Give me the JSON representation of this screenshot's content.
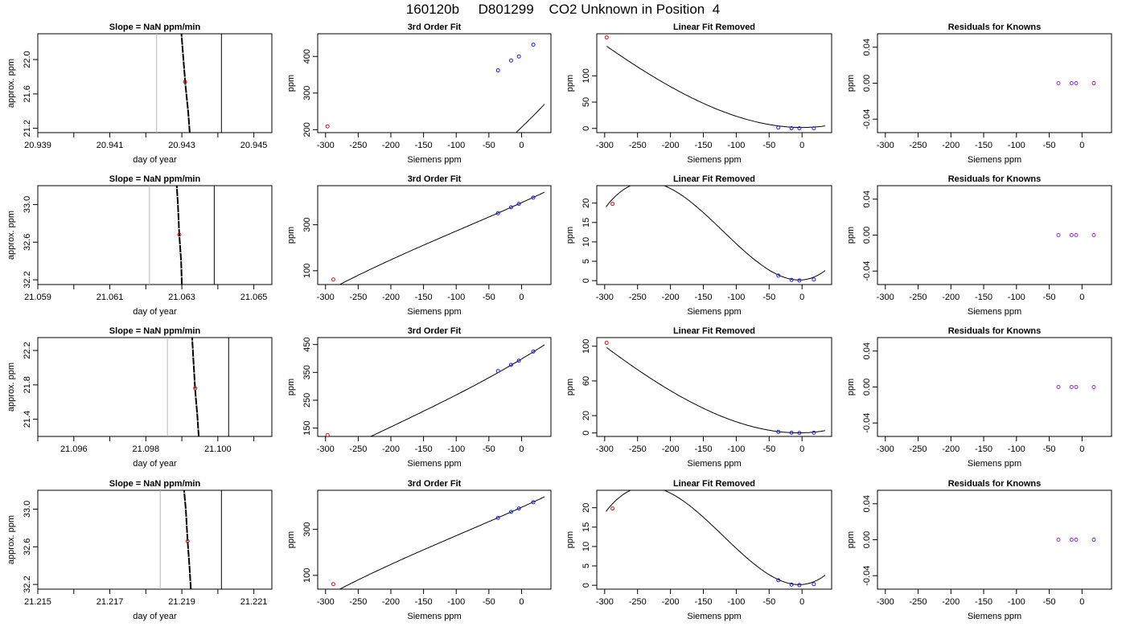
{
  "figure": {
    "title": "160120b     D801299    CO2 Unknown in Position  4"
  },
  "colors": {
    "unknown_point": "#e01010",
    "known_point": "#1a1aff",
    "residual_point": "#8a2be2",
    "curve": "#000000",
    "ref_line_gray": "#b8b8b8",
    "ref_line_black": "#000000"
  },
  "chart_data": [
    {
      "type": "line",
      "row": 1,
      "col": 1,
      "title": "Slope =  NaN  ppm/min",
      "xlabel": "day of year",
      "ylabel": "approx. ppm",
      "xlim": [
        20.939,
        20.9455
      ],
      "ylim": [
        21.15,
        22.3
      ],
      "xticks": [
        20.939,
        20.941,
        20.943,
        20.945
      ],
      "xminor": [
        20.94,
        20.942,
        20.944
      ],
      "yticks": [
        21.2,
        21.6,
        22.0
      ],
      "vlines": [
        {
          "x": 20.9423,
          "color": "gray"
        },
        {
          "x": 20.9441,
          "color": "black"
        }
      ],
      "trace": [
        [
          20.94298,
          22.35
        ],
        [
          20.94303,
          22.08
        ],
        [
          20.9431,
          21.7
        ],
        [
          20.94318,
          21.38
        ],
        [
          20.94322,
          21.15
        ]
      ],
      "marker": [
        20.94309,
        21.74
      ]
    },
    {
      "type": "scatter",
      "row": 1,
      "col": 2,
      "title": "3rd Order Fit",
      "xlabel": "Siemens ppm",
      "ylabel": "ppm",
      "xlim": [
        -312,
        45
      ],
      "ylim": [
        192,
        462
      ],
      "xticks": [
        -300,
        -250,
        -200,
        -150,
        -100,
        -50,
        0
      ],
      "yticks": [
        200,
        300,
        400
      ],
      "fit": {
        "coef": [
          206.5,
          1.7085,
          0.00245,
          2.63e-06
        ],
        "range": [
          -300,
          35
        ]
      },
      "unknown": [
        [
          -297,
          209
        ]
      ],
      "knowns": [
        [
          -36,
          362
        ],
        [
          -16,
          389
        ],
        [
          -4,
          400
        ],
        [
          18,
          432
        ]
      ]
    },
    {
      "type": "scatter",
      "row": 1,
      "col": 3,
      "title": "Linear Fit Removed",
      "xlabel": "Siemens ppm",
      "ylabel": "ppm",
      "xlim": [
        -312,
        45
      ],
      "ylim": [
        -8,
        180
      ],
      "xticks": [
        -300,
        -250,
        -200,
        -150,
        -100,
        -50,
        0
      ],
      "yticks": [
        0,
        50,
        100
      ],
      "fit": {
        "coef": [
          1.8,
          -0.00033,
          0.00233,
          1.95e-06
        ],
        "range": [
          -297,
          35
        ]
      },
      "unknown": [
        [
          -297,
          173
        ]
      ],
      "knowns": [
        [
          -36,
          1.5
        ],
        [
          -16,
          0.4
        ],
        [
          -4,
          0.2
        ],
        [
          18,
          0.3
        ]
      ]
    },
    {
      "type": "scatter",
      "row": 1,
      "col": 4,
      "title": "Residuals for Knowns",
      "xlabel": "Siemens ppm",
      "ylabel": "ppm",
      "xlim": [
        -312,
        45
      ],
      "ylim": [
        -0.055,
        0.055
      ],
      "xticks": [
        -300,
        -250,
        -200,
        -150,
        -100,
        -50,
        0
      ],
      "yticks": [
        -0.04,
        0.0,
        0.04
      ],
      "knowns": [
        [
          -36,
          0
        ],
        [
          -16,
          0
        ],
        [
          -9,
          0
        ],
        [
          18,
          0
        ]
      ]
    },
    {
      "type": "line",
      "row": 2,
      "col": 1,
      "title": "Slope =  NaN  ppm/min",
      "xlabel": "day of year",
      "ylabel": "approx. ppm",
      "xlim": [
        21.059,
        21.0655
      ],
      "ylim": [
        32.15,
        33.2
      ],
      "xticks": [
        21.059,
        21.061,
        21.063,
        21.065
      ],
      "xminor": [
        21.06,
        21.062,
        21.064
      ],
      "yticks": [
        32.2,
        32.6,
        33.0
      ],
      "vlines": [
        {
          "x": 21.0621,
          "color": "gray"
        },
        {
          "x": 21.0639,
          "color": "black"
        }
      ],
      "trace": [
        [
          21.06285,
          33.25
        ],
        [
          21.06289,
          33.0
        ],
        [
          21.06293,
          32.68
        ],
        [
          21.06298,
          32.4
        ],
        [
          21.063,
          32.15
        ]
      ],
      "marker": [
        21.06293,
        32.68
      ]
    },
    {
      "type": "scatter",
      "row": 2,
      "col": 2,
      "title": "3rd Order Fit",
      "xlabel": "Siemens ppm",
      "ylabel": "ppm",
      "xlim": [
        -312,
        45
      ],
      "ylim": [
        40,
        470
      ],
      "xticks": [
        -300,
        -250,
        -200,
        -150,
        -100,
        -50,
        0
      ],
      "yticks": [
        100,
        300
      ],
      "fit": {
        "coef": [
          396,
          1.27,
          0.00058,
          2.2e-06
        ],
        "range": [
          -298,
          35
        ]
      },
      "unknown": [
        [
          -288,
          62
        ]
      ],
      "knowns": [
        [
          -36,
          350
        ],
        [
          -16,
          376
        ],
        [
          -4,
          391
        ],
        [
          18,
          418
        ]
      ]
    },
    {
      "type": "scatter",
      "row": 2,
      "col": 3,
      "title": "Linear Fit Removed",
      "xlabel": "Siemens ppm",
      "ylabel": "ppm",
      "xlim": [
        -312,
        45
      ],
      "ylim": [
        -1,
        24.5
      ],
      "xticks": [
        -300,
        -250,
        -200,
        -150,
        -100,
        -50,
        0
      ],
      "yticks": [
        0,
        5,
        10,
        15,
        20
      ],
      "fit": {
        "coef": [
          0.2,
          0.0122,
          0.00146,
          4.05e-06
        ],
        "range": [
          -298,
          35
        ]
      },
      "unknown": [
        [
          -288,
          19.8
        ]
      ],
      "knowns": [
        [
          -36,
          1.3
        ],
        [
          -16,
          0.2
        ],
        [
          -4,
          0.05
        ],
        [
          18,
          0.3
        ]
      ]
    },
    {
      "type": "scatter",
      "row": 2,
      "col": 4,
      "title": "Residuals for Knowns",
      "xlabel": "Siemens ppm",
      "ylabel": "ppm",
      "xlim": [
        -312,
        45
      ],
      "ylim": [
        -0.055,
        0.055
      ],
      "xticks": [
        -300,
        -250,
        -200,
        -150,
        -100,
        -50,
        0
      ],
      "yticks": [
        -0.04,
        0.0,
        0.04
      ],
      "knowns": [
        [
          -36,
          0
        ],
        [
          -16,
          0
        ],
        [
          -9,
          0
        ],
        [
          18,
          0
        ]
      ]
    },
    {
      "type": "line",
      "row": 3,
      "col": 1,
      "title": "Slope =  NaN  ppm/min",
      "xlabel": "day of year",
      "ylabel": "approx. ppm",
      "xlim": [
        21.095,
        21.1015
      ],
      "ylim": [
        21.2,
        22.35
      ],
      "xticks": [
        21.096,
        21.098,
        21.1
      ],
      "xticklabels": [
        "21.096",
        "21.098",
        "21.100"
      ],
      "xminor": [
        21.095,
        21.097,
        21.099,
        21.101
      ],
      "yticks": [
        21.4,
        21.8,
        22.2
      ],
      "vlines": [
        {
          "x": 21.0986,
          "color": "gray"
        },
        {
          "x": 21.1003,
          "color": "black"
        }
      ],
      "trace": [
        [
          21.09928,
          22.4
        ],
        [
          21.09932,
          22.1
        ],
        [
          21.09937,
          21.75
        ],
        [
          21.09943,
          21.45
        ],
        [
          21.09947,
          21.2
        ]
      ],
      "marker": [
        21.09937,
        21.76
      ]
    },
    {
      "type": "scatter",
      "row": 3,
      "col": 2,
      "title": "3rd Order Fit",
      "xlabel": "Siemens ppm",
      "ylabel": "ppm",
      "xlim": [
        -312,
        45
      ],
      "ylim": [
        120,
        475
      ],
      "xticks": [
        -300,
        -250,
        -200,
        -150,
        -100,
        -50,
        0
      ],
      "yticks": [
        150,
        250,
        350,
        450
      ],
      "fit": {
        "coef": [
          398,
          1.4,
          0.00131,
          2.03e-06
        ],
        "range": [
          -297,
          35
        ]
      },
      "unknown": [
        [
          -297,
          125
        ]
      ],
      "knowns": [
        [
          -36,
          355
        ],
        [
          -16,
          377
        ],
        [
          -4,
          392
        ],
        [
          18,
          425
        ]
      ]
    },
    {
      "type": "scatter",
      "row": 3,
      "col": 3,
      "title": "Linear Fit Removed",
      "xlabel": "Siemens ppm",
      "ylabel": "ppm",
      "xlim": [
        -312,
        45
      ],
      "ylim": [
        -4,
        110
      ],
      "xticks": [
        -300,
        -250,
        -200,
        -150,
        -100,
        -50,
        0
      ],
      "yticks": [
        0,
        20,
        60,
        100
      ],
      "fit": {
        "coef": [
          0.2,
          0.015,
          0.00155,
          1.3e-06
        ],
        "range": [
          -297,
          35
        ]
      },
      "unknown": [
        [
          -297,
          104
        ]
      ],
      "knowns": [
        [
          -36,
          1.3
        ],
        [
          -16,
          0.3
        ],
        [
          -4,
          0.1
        ],
        [
          18,
          0.3
        ]
      ]
    },
    {
      "type": "scatter",
      "row": 3,
      "col": 4,
      "title": "Residuals for Knowns",
      "xlabel": "Siemens ppm",
      "ylabel": "ppm",
      "xlim": [
        -312,
        45
      ],
      "ylim": [
        -0.055,
        0.055
      ],
      "xticks": [
        -300,
        -250,
        -200,
        -150,
        -100,
        -50,
        0
      ],
      "yticks": [
        -0.04,
        0.0,
        0.04
      ],
      "knowns": [
        [
          -36,
          0
        ],
        [
          -16,
          0
        ],
        [
          -9,
          0
        ],
        [
          18,
          0
        ]
      ]
    },
    {
      "type": "line",
      "row": 4,
      "col": 1,
      "title": "Slope =  NaN  ppm/min",
      "xlabel": "day of year",
      "ylabel": "approx. ppm",
      "xlim": [
        21.215,
        21.2215
      ],
      "ylim": [
        32.15,
        33.2
      ],
      "xticks": [
        21.215,
        21.217,
        21.219,
        21.221
      ],
      "xminor": [
        21.216,
        21.218,
        21.22
      ],
      "yticks": [
        32.2,
        32.6,
        33.0
      ],
      "vlines": [
        {
          "x": 21.2184,
          "color": "gray"
        },
        {
          "x": 21.2201,
          "color": "black"
        }
      ],
      "trace": [
        [
          21.21905,
          33.25
        ],
        [
          21.21911,
          33.0
        ],
        [
          21.21916,
          32.67
        ],
        [
          21.21921,
          32.4
        ],
        [
          21.21925,
          32.15
        ]
      ],
      "marker": [
        21.21916,
        32.66
      ]
    },
    {
      "type": "scatter",
      "row": 4,
      "col": 2,
      "title": "3rd Order Fit",
      "xlabel": "Siemens ppm",
      "ylabel": "ppm",
      "xlim": [
        -312,
        45
      ],
      "ylim": [
        40,
        470
      ],
      "xticks": [
        -300,
        -250,
        -200,
        -150,
        -100,
        -50,
        0
      ],
      "yticks": [
        100,
        300
      ],
      "fit": {
        "coef": [
          396,
          1.27,
          0.00058,
          2.2e-06
        ],
        "range": [
          -298,
          35
        ]
      },
      "unknown": [
        [
          -288,
          62
        ]
      ],
      "knowns": [
        [
          -36,
          350
        ],
        [
          -16,
          376
        ],
        [
          -4,
          391
        ],
        [
          18,
          418
        ]
      ]
    },
    {
      "type": "scatter",
      "row": 4,
      "col": 3,
      "title": "Linear Fit Removed",
      "xlabel": "Siemens ppm",
      "ylabel": "ppm",
      "xlim": [
        -312,
        45
      ],
      "ylim": [
        -1,
        24.5
      ],
      "xticks": [
        -300,
        -250,
        -200,
        -150,
        -100,
        -50,
        0
      ],
      "yticks": [
        0,
        5,
        10,
        15,
        20
      ],
      "fit": {
        "coef": [
          0.2,
          0.0122,
          0.00146,
          4.05e-06
        ],
        "range": [
          -298,
          35
        ]
      },
      "unknown": [
        [
          -288,
          19.8
        ]
      ],
      "knowns": [
        [
          -36,
          1.3
        ],
        [
          -16,
          0.2
        ],
        [
          -4,
          0.05
        ],
        [
          18,
          0.3
        ]
      ]
    },
    {
      "type": "scatter",
      "row": 4,
      "col": 4,
      "title": "Residuals for Knowns",
      "xlabel": "Siemens ppm",
      "ylabel": "ppm",
      "xlim": [
        -312,
        45
      ],
      "ylim": [
        -0.055,
        0.055
      ],
      "xticks": [
        -300,
        -250,
        -200,
        -150,
        -100,
        -50,
        0
      ],
      "yticks": [
        -0.04,
        0.0,
        0.04
      ],
      "knowns": [
        [
          -36,
          0
        ],
        [
          -16,
          0
        ],
        [
          -9,
          0
        ],
        [
          18,
          0
        ]
      ]
    }
  ]
}
